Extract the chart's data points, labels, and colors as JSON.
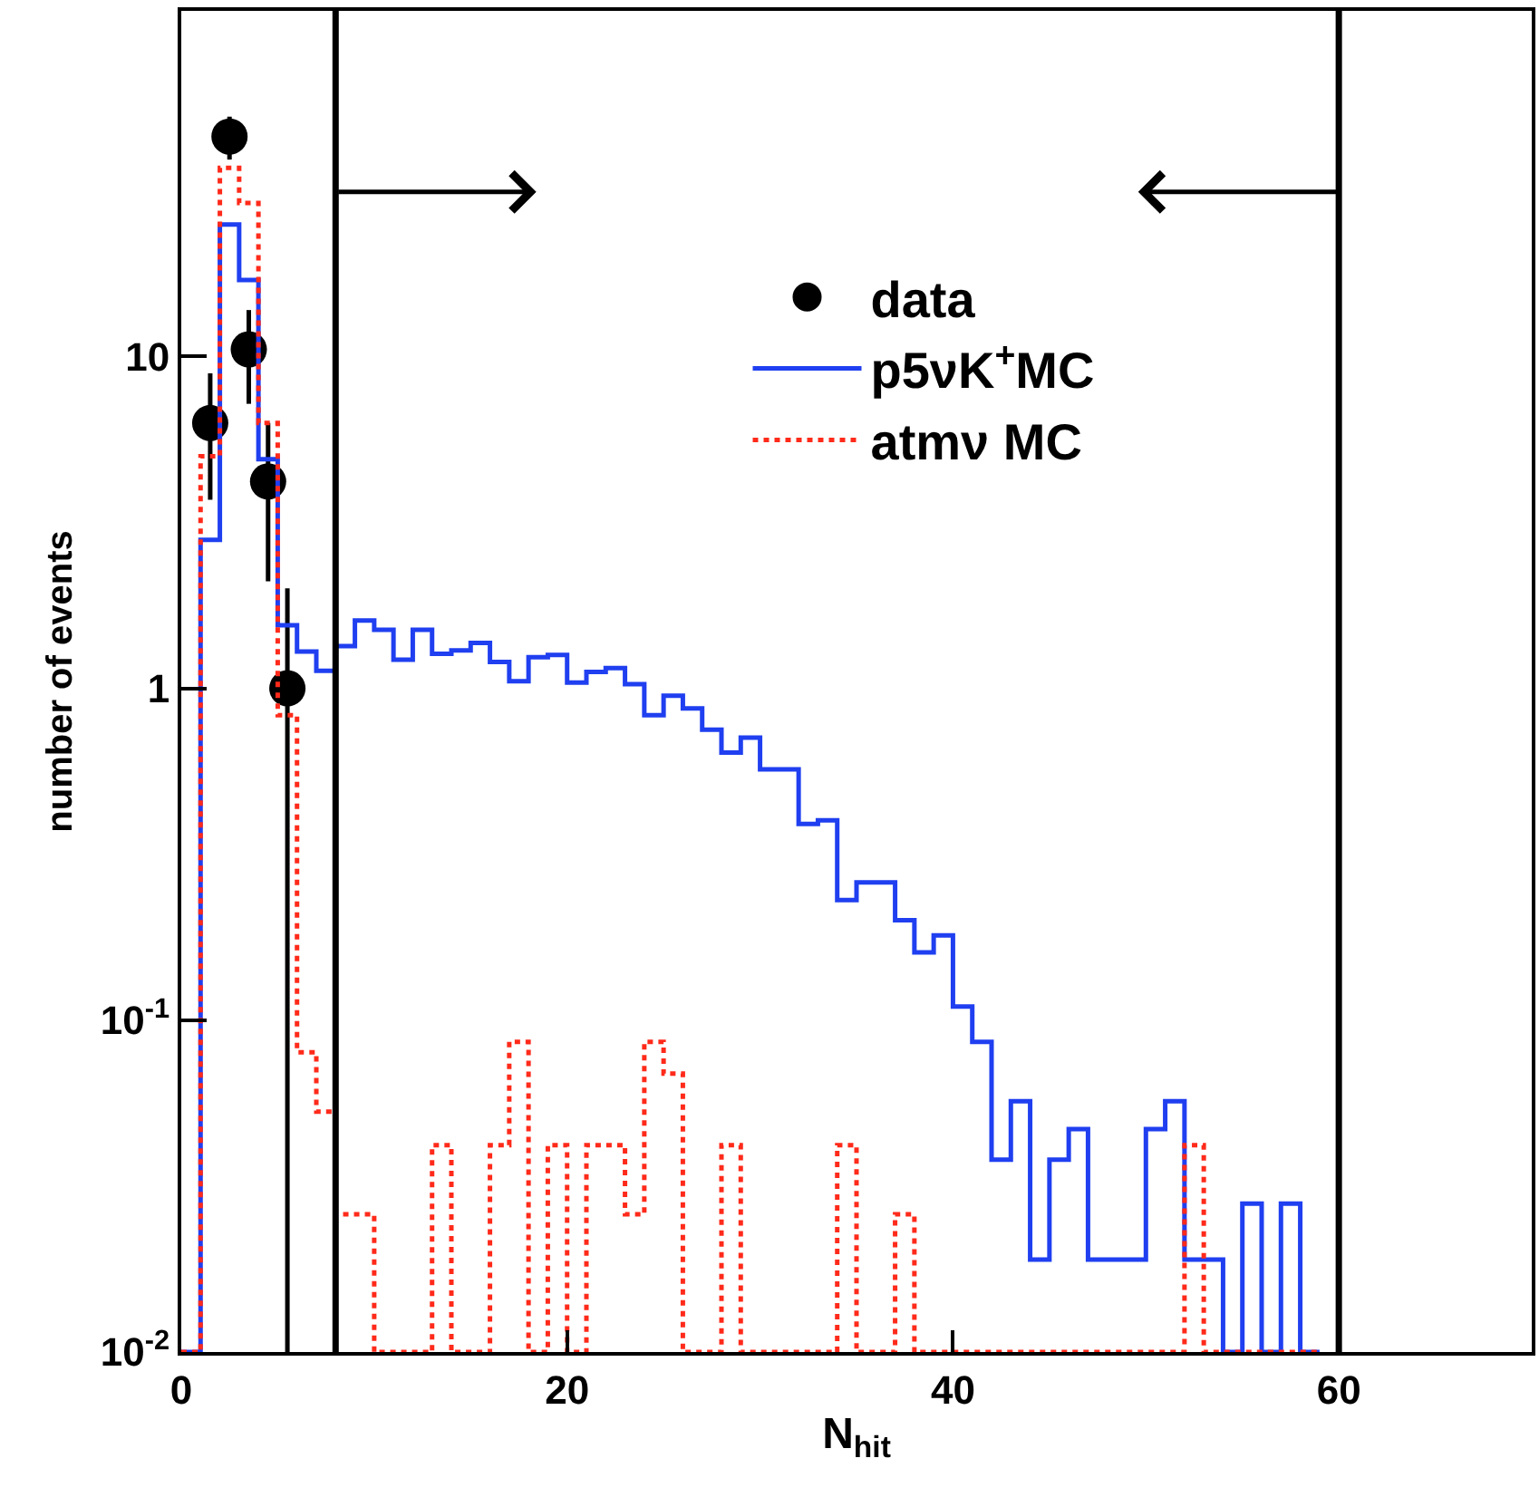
{
  "chart_data": {
    "type": "histogram",
    "xlabel": "N$_{hit}$",
    "ylabel": "number of events",
    "bins": [
      0,
      1,
      2,
      3,
      4,
      5,
      6,
      7,
      8,
      9,
      10,
      11,
      12,
      13,
      14,
      15,
      16,
      17,
      18,
      19,
      20,
      21,
      22,
      23,
      24,
      25,
      26,
      27,
      28,
      29,
      30,
      31,
      32,
      33,
      34,
      35,
      36,
      37,
      38,
      39,
      40,
      41,
      42,
      43,
      44,
      45,
      46,
      47,
      48,
      49,
      50,
      51,
      52,
      53,
      54,
      55,
      56,
      57,
      58,
      59
    ],
    "series": [
      {
        "name": "data",
        "type": "scatter",
        "color": "#000000",
        "x": [
          1.5,
          2.5,
          3.5,
          4.5,
          5.5
        ],
        "values": [
          6.3,
          46,
          10.5,
          4.2,
          1.0
        ],
        "errors": [
          [
            3.7,
            8.9
          ],
          [
            39.2,
            52.8
          ],
          [
            7.2,
            13.8
          ],
          [
            2.1,
            6.3
          ],
          [
            0.01,
            2.0
          ]
        ],
        "marker": "circle"
      },
      {
        "name": "p5νK$^{+}$MC",
        "color": "#1f3ff0",
        "line_style": "solid",
        "values": [
          null,
          2.8,
          25,
          17,
          4.9,
          1.55,
          1.29,
          1.13,
          1.34,
          1.6,
          1.5,
          1.22,
          1.5,
          1.27,
          1.3,
          1.37,
          1.2,
          1.05,
          1.24,
          1.26,
          1.04,
          1.12,
          1.15,
          1.03,
          0.83,
          0.95,
          0.87,
          0.75,
          0.64,
          0.71,
          0.57,
          0.57,
          0.39,
          0.4,
          0.23,
          0.26,
          0.26,
          0.2,
          0.16,
          0.18,
          0.11,
          0.086,
          0.038,
          0.057,
          0.019,
          0.038,
          0.047,
          0.019,
          0.019,
          0.019,
          0.047,
          0.057,
          0.019,
          0.019,
          null,
          0.028,
          null,
          0.028,
          null
        ]
      },
      {
        "name": "atmν MC",
        "color": "#ff2a1a",
        "line_style": "dotted",
        "values": [
          null,
          5,
          37,
          29,
          6.3,
          0.83,
          0.08,
          0.053,
          0.026,
          0.026,
          null,
          null,
          null,
          0.042,
          null,
          null,
          0.042,
          0.086,
          null,
          0.042,
          null,
          0.042,
          0.042,
          0.026,
          0.086,
          0.069,
          null,
          null,
          0.042,
          null,
          null,
          null,
          null,
          null,
          0.042,
          null,
          null,
          0.026,
          null,
          null,
          null,
          null,
          null,
          null,
          null,
          null,
          null,
          null,
          null,
          null,
          null,
          null,
          0.042,
          null,
          null,
          null,
          null,
          null,
          null
        ]
      }
    ],
    "xlim": [
      0,
      70
    ],
    "xticks": [
      0,
      20,
      40,
      60
    ],
    "ylim": [
      0.01,
      110
    ],
    "yticks": [
      {
        "value": 0.01,
        "label": "10$^{-2}$"
      },
      {
        "value": 0.1,
        "label": "10$^{-1}$"
      },
      1,
      10
    ],
    "log": "y",
    "legend": "top",
    "ref_lines": [
      {
        "axis": "x",
        "value": 8,
        "color": "#000000",
        "line_style": "solid"
      },
      {
        "axis": "x",
        "value": 60,
        "color": "#000000",
        "line_style": "solid"
      }
    ]
  }
}
